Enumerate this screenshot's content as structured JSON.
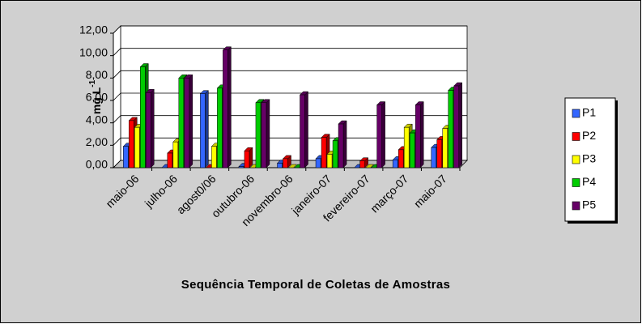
{
  "chart_data": {
    "type": "bar3d",
    "y_label": {
      "text": "mg L",
      "superscript": "-1"
    },
    "x_label": "Sequência Temporal de Coletas de Amostras",
    "categories": [
      "maio-06",
      "julho-06",
      "agost0/06",
      "outubro-06",
      "novembro-06",
      "janeiro-07",
      "fevereiro-07",
      "março-07",
      "maio-07"
    ],
    "series": [
      {
        "name": "P1",
        "color": "#3366ff",
        "values": [
          1.9,
          0,
          6.6,
          0.1,
          0.4,
          0.8,
          0,
          0.7,
          1.8
        ]
      },
      {
        "name": "P2",
        "color": "#ff0000",
        "values": [
          4.2,
          1.3,
          0,
          1.5,
          0.8,
          2.7,
          0.6,
          1.6,
          2.5
        ]
      },
      {
        "name": "P3",
        "color": "#ffff00",
        "values": [
          3.6,
          2.3,
          1.9,
          0,
          0,
          1.2,
          0,
          3.6,
          3.5
        ]
      },
      {
        "name": "P4",
        "color": "#00cc00",
        "values": [
          9.0,
          8.0,
          7.1,
          5.8,
          0,
          2.4,
          0,
          3.1,
          6.9
        ]
      },
      {
        "name": "P5",
        "color": "#660066",
        "values": [
          6.7,
          8.0,
          10.5,
          5.8,
          6.5,
          3.9,
          5.6,
          5.6,
          7.3
        ]
      }
    ],
    "ylim": [
      0,
      12
    ],
    "yticks": [
      {
        "value": 0,
        "label": "0,00"
      },
      {
        "value": 2,
        "label": "2,00"
      },
      {
        "value": 4,
        "label": "4,00"
      },
      {
        "value": 6,
        "label": "6,00"
      },
      {
        "value": 8,
        "label": "8,00"
      },
      {
        "value": 10,
        "label": "10,00"
      },
      {
        "value": 12,
        "label": "12,00"
      }
    ],
    "grid": true,
    "legend": "right"
  }
}
